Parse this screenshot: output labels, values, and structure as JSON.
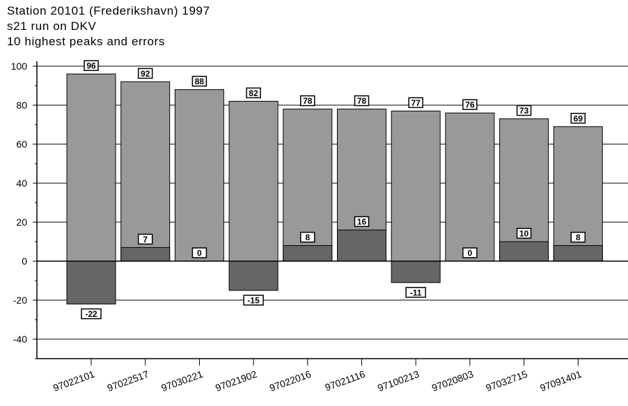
{
  "titles": {
    "line1": "Station 20101 (Frederikshavn) 1997",
    "line2": "s21 run on DKV",
    "line3": "10 highest peaks and errors"
  },
  "colors": {
    "peak_bar": "#999999",
    "error_bar": "#666666",
    "grid": "#000000",
    "background": "#ffffff"
  },
  "chart_data": {
    "type": "bar",
    "title": "Station 20101 (Frederikshavn) 1997",
    "subtitle": "s21 run on DKV / 10 highest peaks and errors",
    "categories": [
      "97022101",
      "97022517",
      "97030221",
      "97021902",
      "97022016",
      "97021116",
      "97100213",
      "97020803",
      "97032715",
      "97091401"
    ],
    "series": [
      {
        "values": [
          96,
          92,
          88,
          82,
          78,
          78,
          77,
          76,
          73,
          69
        ]
      },
      {
        "values": [
          -22,
          7,
          0,
          -15,
          8,
          16,
          -11,
          0,
          10,
          8
        ]
      }
    ],
    "ylim": [
      -50,
      100
    ],
    "yticks": [
      -40,
      -20,
      0,
      20,
      40,
      60,
      80,
      100
    ],
    "grid": true,
    "xlabel": "",
    "ylabel": ""
  }
}
